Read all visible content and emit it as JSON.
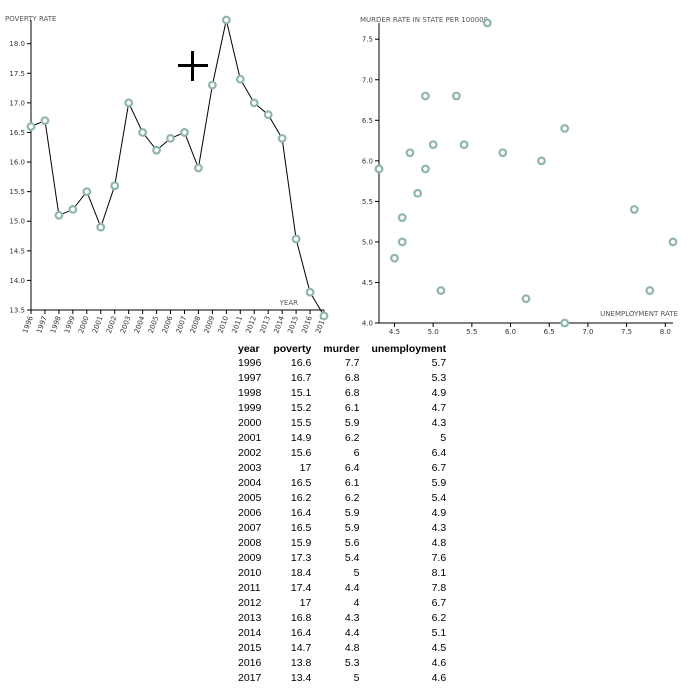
{
  "chart_data": [
    {
      "type": "line",
      "title": "",
      "ylabel": "POVERTY RATE",
      "xlabel": "YEAR",
      "ylim": [
        13.5,
        18.4
      ],
      "y_ticks": [
        "13.5",
        "14.0",
        "14.5",
        "15.0",
        "15.5",
        "16.0",
        "16.5",
        "17.0",
        "17.5",
        "18.0"
      ],
      "x": [
        "1996",
        "1997",
        "1998",
        "1999",
        "2000",
        "2001",
        "2002",
        "2003",
        "2004",
        "2005",
        "2006",
        "2007",
        "2008",
        "2009",
        "2010",
        "2011",
        "2012",
        "2013",
        "2014",
        "2015",
        "2016",
        "2017"
      ],
      "values": [
        16.6,
        16.7,
        15.1,
        15.2,
        15.5,
        14.9,
        15.6,
        17,
        16.5,
        16.2,
        16.4,
        16.5,
        15.9,
        17.3,
        18.4,
        17.4,
        17,
        16.8,
        16.4,
        14.7,
        13.8,
        13.4
      ]
    },
    {
      "type": "scatter",
      "title": "",
      "ylabel": "MURDER RATE IN STATE PER 100000",
      "xlabel": "UNEMPLOYMENT RATE",
      "xlim": [
        4.3,
        8.1
      ],
      "ylim": [
        4.0,
        7.7
      ],
      "x_ticks": [
        "4.5",
        "5.0",
        "5.5",
        "6.0",
        "6.5",
        "7.0",
        "7.5",
        "8.0"
      ],
      "y_ticks": [
        "4.0",
        "4.5",
        "5.0",
        "5.5",
        "6.0",
        "6.5",
        "7.0",
        "7.5"
      ],
      "x": [
        5.7,
        5.3,
        4.9,
        4.7,
        4.3,
        5,
        6.4,
        6.7,
        5.9,
        5.4,
        4.9,
        4.3,
        4.8,
        7.6,
        8.1,
        7.8,
        6.7,
        6.2,
        5.1,
        4.5,
        4.6,
        4.6
      ],
      "y": [
        7.7,
        6.8,
        6.8,
        6.1,
        5.9,
        6.2,
        6,
        6.4,
        6.1,
        6.2,
        5.9,
        5.9,
        5.6,
        5.4,
        5,
        4.4,
        4,
        4.3,
        4.4,
        4.8,
        5.3,
        5
      ]
    }
  ],
  "table": {
    "headers": [
      "year",
      "poverty",
      "murder",
      "unemployment"
    ],
    "rows": [
      [
        "1996",
        "16.6",
        "7.7",
        "5.7"
      ],
      [
        "1997",
        "16.7",
        "6.8",
        "5.3"
      ],
      [
        "1998",
        "15.1",
        "6.8",
        "4.9"
      ],
      [
        "1999",
        "15.2",
        "6.1",
        "4.7"
      ],
      [
        "2000",
        "15.5",
        "5.9",
        "4.3"
      ],
      [
        "2001",
        "14.9",
        "6.2",
        "5"
      ],
      [
        "2002",
        "15.6",
        "6",
        "6.4"
      ],
      [
        "2003",
        "17",
        "6.4",
        "6.7"
      ],
      [
        "2004",
        "16.5",
        "6.1",
        "5.9"
      ],
      [
        "2005",
        "16.2",
        "6.2",
        "5.4"
      ],
      [
        "2006",
        "16.4",
        "5.9",
        "4.9"
      ],
      [
        "2007",
        "16.5",
        "5.9",
        "4.3"
      ],
      [
        "2008",
        "15.9",
        "5.6",
        "4.8"
      ],
      [
        "2009",
        "17.3",
        "5.4",
        "7.6"
      ],
      [
        "2010",
        "18.4",
        "5",
        "8.1"
      ],
      [
        "2011",
        "17.4",
        "4.4",
        "7.8"
      ],
      [
        "2012",
        "17",
        "4",
        "6.7"
      ],
      [
        "2013",
        "16.8",
        "4.3",
        "6.2"
      ],
      [
        "2014",
        "16.4",
        "4.4",
        "5.1"
      ],
      [
        "2015",
        "14.7",
        "4.8",
        "4.5"
      ],
      [
        "2016",
        "13.8",
        "5.3",
        "4.6"
      ],
      [
        "2017",
        "13.4",
        "5",
        "4.6"
      ]
    ]
  },
  "colors": {
    "point_stroke": "#8fb7a4",
    "line": "#000000"
  },
  "cursor_icon": "crosshair-icon"
}
